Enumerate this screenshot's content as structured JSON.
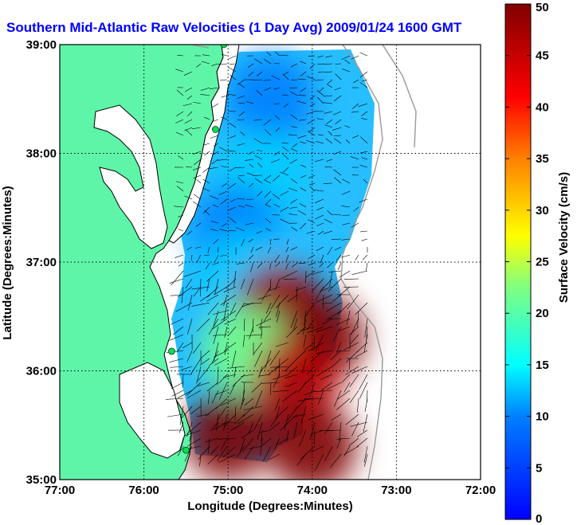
{
  "chart_data": {
    "type": "heatmap",
    "title": "Southern Mid-Atlantic Raw Velocities (1 Day Avg) 2009/01/24 1600 GMT",
    "xlabel": "Longitude (Degrees:Minutes)",
    "ylabel": "Latitude (Degrees:Minutes)",
    "colorbar_label": "Surface Velocity (cm/s)",
    "xlim": [
      -77,
      -72
    ],
    "ylim": [
      35,
      39
    ],
    "x_ticks": [
      {
        "value": -77,
        "label": "77:00"
      },
      {
        "value": -76,
        "label": "76:00"
      },
      {
        "value": -75,
        "label": "75:00"
      },
      {
        "value": -74,
        "label": "74:00"
      },
      {
        "value": -73,
        "label": "73:00"
      },
      {
        "value": -72,
        "label": "72:00"
      }
    ],
    "y_ticks": [
      {
        "value": 35,
        "label": "35:00"
      },
      {
        "value": 36,
        "label": "36:00"
      },
      {
        "value": 37,
        "label": "37:00"
      },
      {
        "value": 38,
        "label": "38:00"
      },
      {
        "value": 39,
        "label": "39:00"
      }
    ],
    "colorbar": {
      "range": [
        0,
        50
      ],
      "ticks": [
        0,
        5,
        10,
        15,
        20,
        25,
        30,
        35,
        40,
        45,
        50
      ],
      "colors": [
        "#0000ff",
        "#0080ff",
        "#00ffff",
        "#80ff80",
        "#ffff00",
        "#ff8000",
        "#ff0000",
        "#800000"
      ]
    },
    "colors": {
      "land": "#5ff5a8",
      "ocean": "#ffffff",
      "arrow": "#000000",
      "station": "#00e050",
      "bathymetry": "#999999"
    },
    "grid": true,
    "velocity_regions": [
      {
        "lon": -74.5,
        "lat": 38.5,
        "speed": 10
      },
      {
        "lon": -74.6,
        "lat": 37.8,
        "speed": 13
      },
      {
        "lon": -74.9,
        "lat": 37.3,
        "speed": 10
      },
      {
        "lon": -74.8,
        "lat": 36.9,
        "speed": 13
      },
      {
        "lon": -74.4,
        "lat": 36.6,
        "speed": 48
      },
      {
        "lon": -73.9,
        "lat": 36.3,
        "speed": 50
      },
      {
        "lon": -74.8,
        "lat": 36.2,
        "speed": 22
      },
      {
        "lon": -74.2,
        "lat": 35.9,
        "speed": 46
      },
      {
        "lon": -75.0,
        "lat": 35.4,
        "speed": 50
      },
      {
        "lon": -74.0,
        "lat": 35.3,
        "speed": 50
      }
    ],
    "stations": [
      {
        "lon": -75.05,
        "lat": 39.0
      },
      {
        "lon": -75.15,
        "lat": 38.22
      },
      {
        "lon": -75.67,
        "lat": 36.18
      },
      {
        "lon": -75.5,
        "lat": 35.27
      }
    ]
  }
}
